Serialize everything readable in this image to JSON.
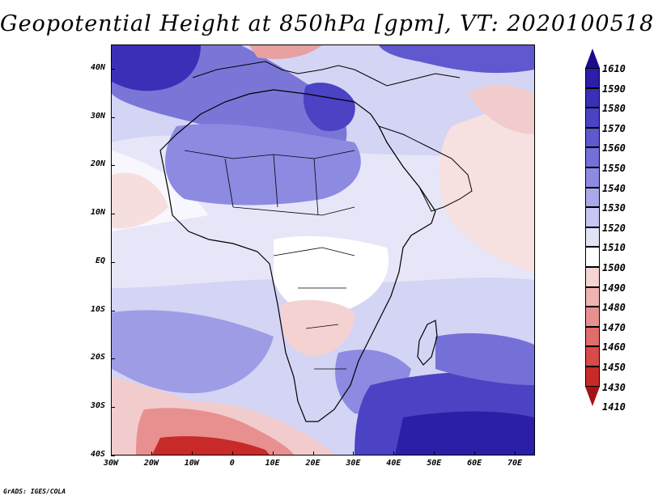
{
  "title": "Geopotential Height at 850hPa [gpm], VT: 2020100518",
  "credit": "GrADS: IGES/COLA",
  "map": {
    "lat_labels": [
      "40N",
      "30N",
      "20N",
      "10N",
      "EQ",
      "10S",
      "20S",
      "30S",
      "40S"
    ],
    "lon_labels": [
      "30W",
      "20W",
      "10W",
      "0",
      "10E",
      "20E",
      "30E",
      "40E",
      "50E",
      "60E",
      "70E"
    ],
    "lat_range": [
      -40,
      45
    ],
    "lon_range": [
      -30,
      75
    ]
  },
  "legend": {
    "labels": [
      "1610",
      "1590",
      "1580",
      "1570",
      "1560",
      "1550",
      "1540",
      "1530",
      "1520",
      "1510",
      "1500",
      "1490",
      "1480",
      "1470",
      "1460",
      "1450",
      "1430",
      "1410"
    ],
    "colors": [
      "#1a0a8c",
      "#2a1fa6",
      "#3a30b8",
      "#4b42c4",
      "#5f58cf",
      "#7570d8",
      "#8d8ae2",
      "#a9a8ea",
      "#c6c6f2",
      "#e3e3f8",
      "#ffffff",
      "#f6d4d4",
      "#efb3b3",
      "#e89090",
      "#e06c6c",
      "#d94a4a",
      "#c82a2a",
      "#a31414"
    ]
  }
}
